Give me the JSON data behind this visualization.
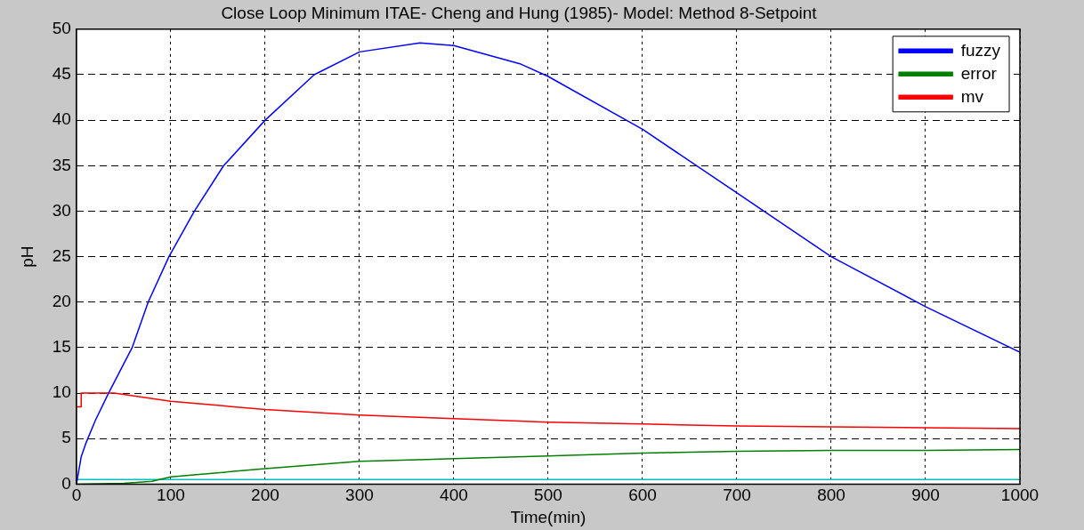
{
  "chart_data": {
    "type": "line",
    "title": "Close Loop Minimum ITAE- Cheng and Hung (1985)- Model: Method 8-Setpoint",
    "xlabel": "Time(min)",
    "ylabel": "pH",
    "xlim": [
      0,
      1000
    ],
    "xticks": [
      0,
      100,
      200,
      300,
      400,
      500,
      600,
      700,
      800,
      900,
      1000
    ],
    "ylim": [
      0,
      50
    ],
    "yticks": [
      0,
      5,
      10,
      15,
      20,
      25,
      30,
      35,
      40,
      45,
      50
    ],
    "grid": true,
    "legend": "top right",
    "line_style": "solid",
    "marker": "none",
    "series": [
      {
        "name": "fuzzy",
        "color": "#0000ff",
        "x": [
          0,
          5,
          10,
          20,
          34,
          59,
          76,
          98,
          125,
          156,
          200,
          252,
          300,
          364,
          400,
          470,
          500,
          600,
          700,
          800,
          900,
          1000
        ],
        "values": [
          0,
          3,
          4.5,
          7,
          10,
          15,
          20,
          25,
          30,
          35,
          40,
          45,
          47.5,
          48.5,
          48.2,
          46.2,
          44.8,
          39,
          32,
          25,
          19.5,
          14.5
        ]
      },
      {
        "name": "error",
        "color": "#008000",
        "x": [
          0,
          50,
          80,
          100,
          200,
          300,
          370,
          400,
          500,
          600,
          700,
          800,
          900,
          1000
        ],
        "values": [
          0,
          0.1,
          0.3,
          0.8,
          1.7,
          2.5,
          2.7,
          2.8,
          3.1,
          3.4,
          3.6,
          3.7,
          3.7,
          3.8
        ]
      },
      {
        "name": "mv",
        "color": "#ff0000",
        "x": [
          0,
          5,
          5,
          40,
          100,
          200,
          300,
          400,
          500,
          600,
          700,
          800,
          900,
          1000
        ],
        "values": [
          8.5,
          8.5,
          10,
          10,
          9.1,
          8.2,
          7.6,
          7.2,
          6.8,
          6.6,
          6.4,
          6.3,
          6.2,
          6.1
        ]
      },
      {
        "color": "#00c0c0",
        "x": [
          0,
          1000
        ],
        "values": [
          0.5,
          0.5
        ]
      }
    ]
  }
}
